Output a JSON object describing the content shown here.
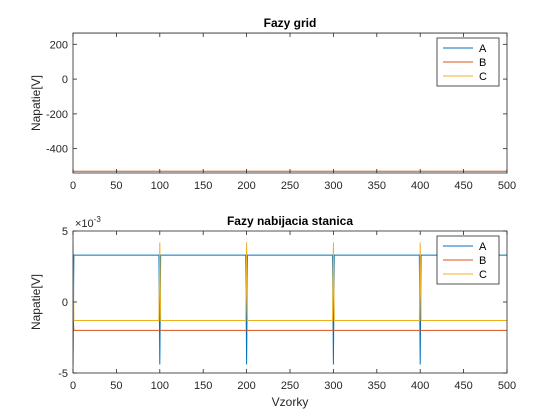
{
  "chart_data": [
    {
      "type": "line",
      "title": "Fazy grid",
      "xlabel": "",
      "ylabel": "Napatie[V]",
      "xlim": [
        0,
        500
      ],
      "ylim": [
        -540,
        265
      ],
      "xticks": [
        0,
        50,
        100,
        150,
        200,
        250,
        300,
        350,
        400,
        450,
        500
      ],
      "yticks": [
        200,
        0,
        -200,
        -400
      ],
      "ytick_labels": [
        "200",
        "0",
        "-200",
        "-400"
      ],
      "exponent_label": "",
      "legend": "top-right",
      "grid": false,
      "series": [
        {
          "name": "A",
          "color": "#0072BD",
          "x": [
            0,
            500
          ],
          "y": [
            265,
            265
          ]
        },
        {
          "name": "B",
          "color": "#D95319",
          "x": [
            0,
            500
          ],
          "y": [
            -530,
            -530
          ]
        },
        {
          "name": "C",
          "color": "#EDB120",
          "x": [
            0,
            500
          ],
          "y": [
            264,
            264
          ]
        }
      ]
    },
    {
      "type": "line",
      "title": "Fazy nabijacia stanica",
      "xlabel": "Vzorky",
      "ylabel": "Napatie[V]",
      "xlim": [
        0,
        500
      ],
      "ylim": [
        -5,
        5
      ],
      "xticks": [
        0,
        50,
        100,
        150,
        200,
        250,
        300,
        350,
        400,
        450,
        500
      ],
      "yticks": [
        5,
        0,
        -5
      ],
      "ytick_labels": [
        "5",
        "0",
        "-5"
      ],
      "exponent_label": "10",
      "exponent_power": "-3",
      "legend": "top-right",
      "grid": false,
      "series": [
        {
          "name": "A",
          "color": "#0072BD",
          "x": [
            0,
            1,
            2,
            99,
            100,
            101,
            199,
            200,
            201,
            299,
            300,
            301,
            399,
            400,
            401,
            500
          ],
          "y": [
            -4.5,
            3.3,
            3.3,
            3.3,
            -4.4,
            3.3,
            3.3,
            -4.4,
            3.3,
            3.3,
            -4.4,
            3.3,
            3.3,
            -4.4,
            3.3,
            3.3
          ]
        },
        {
          "name": "B",
          "color": "#D95319",
          "x": [
            0,
            1,
            2,
            500
          ],
          "y": [
            -1.0,
            -2.0,
            -2.0,
            -2.0
          ]
        },
        {
          "name": "C",
          "color": "#EDB120",
          "x": [
            0,
            1,
            2,
            99,
            100,
            101,
            199,
            200,
            201,
            299,
            300,
            301,
            399,
            400,
            401,
            500
          ],
          "y": [
            4.2,
            -1.3,
            -1.3,
            -1.3,
            4.2,
            -1.3,
            -1.3,
            4.2,
            -1.3,
            -1.3,
            4.2,
            -1.3,
            -1.3,
            4.2,
            -1.3,
            -1.3
          ]
        }
      ]
    }
  ]
}
